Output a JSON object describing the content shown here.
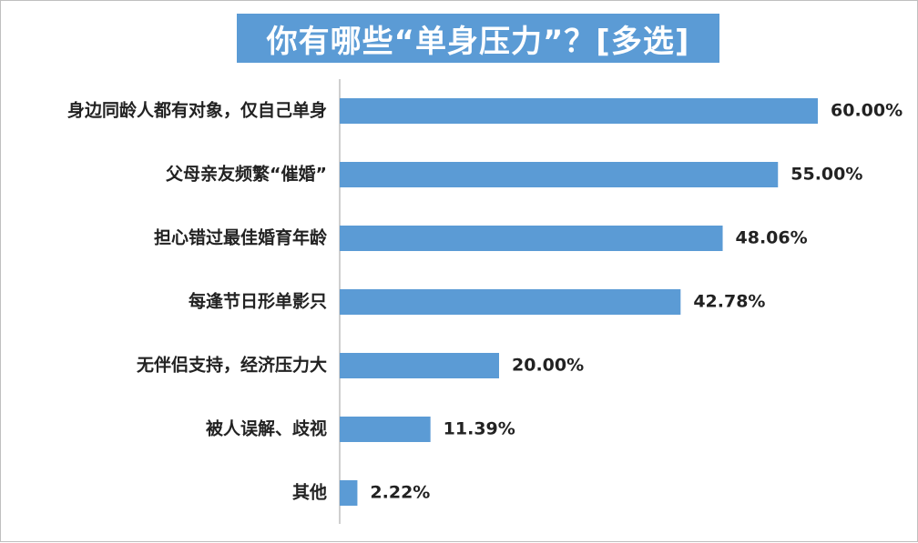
{
  "chart_data": {
    "type": "bar",
    "orientation": "horizontal",
    "title": "你有哪些“单身压力”？[多选]",
    "categories": [
      "身边同龄人都有对象，仅自己单身",
      "父母亲友频繁“催婚”",
      "担心错过最佳婚育年龄",
      "每逢节日形单影只",
      "无伴侣支持，经济压力大",
      "被人误解、歧视",
      "其他"
    ],
    "values": [
      60.0,
      55.0,
      48.06,
      42.78,
      20.0,
      11.39,
      2.22
    ],
    "value_labels": [
      "60.00%",
      "55.00%",
      "48.06%",
      "42.78%",
      "20.00%",
      "11.39%",
      "2.22%"
    ],
    "xlim": [
      0,
      60
    ],
    "grid": false,
    "legend": "none",
    "bar_color": "#5b9bd5",
    "title_bg_color": "#5b9bd5",
    "title_text_color": "#ffffff"
  }
}
